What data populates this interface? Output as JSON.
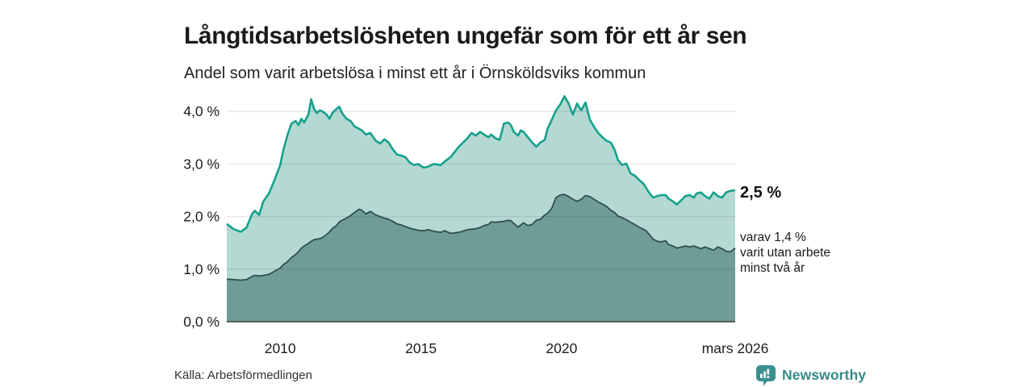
{
  "header": {
    "title": "Långtidsarbetslösheten ungefär som för ett år sen",
    "subtitle": "Andel som varit arbetslösa i minst ett år i Örnsköldsviks kommun"
  },
  "annotations": {
    "total_end_label": "2,5 %",
    "breakdown_lines": [
      "varav 1,4 %",
      "varit utan arbete",
      "minst två år"
    ]
  },
  "footer": {
    "source": "Källa: Arbetsförmedlingen",
    "brand": "Newsworthy"
  },
  "colors": {
    "total_line": "#16a18c",
    "total_fill": "#b4d9d3",
    "two_year_line": "#2f504d",
    "two_year_fill": "#6f9c98",
    "grid_line": "#dcdcdc",
    "grid_over_fill": "rgba(20,20,20,0.10)",
    "axis_line": "#3a3a3a",
    "tick_text": "#1c1c1c",
    "brand_teal": "#35888a"
  },
  "chart_data": {
    "type": "area",
    "title": "Långtidsarbetslösheten ungefär som för ett år sen",
    "subtitle": "Andel som varit arbetslösa i minst ett år i Örnsköldsviks kommun",
    "xlabel": "",
    "ylabel": "",
    "unit": "%",
    "grid": true,
    "legend_position": "end-of-line-labels",
    "x_range": [
      2008.1,
      2026.17
    ],
    "ylim": [
      0,
      4.35
    ],
    "yticks": [
      {
        "value": 0.0,
        "label": "0,0 %"
      },
      {
        "value": 1.0,
        "label": "1,0 %"
      },
      {
        "value": 2.0,
        "label": "2,0 %"
      },
      {
        "value": 3.0,
        "label": "3,0 %"
      },
      {
        "value": 4.0,
        "label": "4,0 %"
      }
    ],
    "xticks": [
      {
        "value": 2010,
        "label": "2010"
      },
      {
        "value": 2015,
        "label": "2015"
      },
      {
        "value": 2020,
        "label": "2020"
      },
      {
        "value": 2026.17,
        "label": "mars 2026"
      }
    ],
    "x": [
      2008.1,
      2008.35,
      2008.6,
      2008.8,
      2009.0,
      2009.1,
      2009.25,
      2009.4,
      2009.6,
      2009.8,
      2010.0,
      2010.1,
      2010.25,
      2010.4,
      2010.55,
      2010.65,
      2010.75,
      2010.85,
      2011.0,
      2011.1,
      2011.2,
      2011.3,
      2011.4,
      2011.5,
      2011.65,
      2011.75,
      2011.85,
      2012.0,
      2012.1,
      2012.2,
      2012.35,
      2012.5,
      2012.65,
      2012.8,
      2012.9,
      2013.05,
      2013.2,
      2013.4,
      2013.55,
      2013.7,
      2013.85,
      2014.0,
      2014.15,
      2014.3,
      2014.45,
      2014.6,
      2014.75,
      2014.9,
      2015.1,
      2015.25,
      2015.45,
      2015.7,
      2015.85,
      2016.05,
      2016.35,
      2016.65,
      2016.8,
      2016.95,
      2017.1,
      2017.25,
      2017.4,
      2017.5,
      2017.65,
      2017.8,
      2017.95,
      2018.1,
      2018.2,
      2018.3,
      2018.45,
      2018.55,
      2018.65,
      2018.8,
      2018.95,
      2019.1,
      2019.25,
      2019.4,
      2019.5,
      2019.65,
      2019.8,
      2019.95,
      2020.1,
      2020.25,
      2020.4,
      2020.55,
      2020.7,
      2020.85,
      2021.0,
      2021.15,
      2021.3,
      2021.45,
      2021.6,
      2021.75,
      2021.9,
      2022.0,
      2022.15,
      2022.3,
      2022.45,
      2022.6,
      2022.75,
      2022.9,
      2023.0,
      2023.1,
      2023.25,
      2023.4,
      2023.55,
      2023.7,
      2023.8,
      2023.95,
      2024.1,
      2024.25,
      2024.4,
      2024.55,
      2024.7,
      2024.8,
      2024.95,
      2025.1,
      2025.25,
      2025.4,
      2025.55,
      2025.7,
      2025.85,
      2026.0,
      2026.17
    ],
    "series": [
      {
        "name": "Andel arbetslösa minst ett år",
        "end_value": 2.5,
        "end_label": "2,5 %",
        "values": [
          1.86,
          1.76,
          1.71,
          1.79,
          2.05,
          2.11,
          2.03,
          2.29,
          2.44,
          2.7,
          2.98,
          3.24,
          3.54,
          3.77,
          3.82,
          3.74,
          3.86,
          3.79,
          3.94,
          4.23,
          4.05,
          3.97,
          4.02,
          4.0,
          3.94,
          3.86,
          3.97,
          4.05,
          4.09,
          3.97,
          3.86,
          3.82,
          3.71,
          3.67,
          3.64,
          3.56,
          3.59,
          3.44,
          3.39,
          3.47,
          3.41,
          3.28,
          3.18,
          3.16,
          3.13,
          3.03,
          2.98,
          3.0,
          2.93,
          2.95,
          3.0,
          2.98,
          3.05,
          3.13,
          3.33,
          3.49,
          3.59,
          3.54,
          3.61,
          3.56,
          3.51,
          3.56,
          3.49,
          3.46,
          3.77,
          3.79,
          3.74,
          3.61,
          3.54,
          3.64,
          3.61,
          3.51,
          3.41,
          3.33,
          3.41,
          3.46,
          3.67,
          3.84,
          4.02,
          4.13,
          4.29,
          4.15,
          3.94,
          4.15,
          4.02,
          4.17,
          3.85,
          3.71,
          3.59,
          3.51,
          3.44,
          3.41,
          3.25,
          3.08,
          2.98,
          3.01,
          2.82,
          2.78,
          2.7,
          2.63,
          2.55,
          2.46,
          2.36,
          2.39,
          2.41,
          2.41,
          2.34,
          2.29,
          2.23,
          2.31,
          2.39,
          2.41,
          2.36,
          2.44,
          2.46,
          2.39,
          2.34,
          2.46,
          2.39,
          2.36,
          2.46,
          2.49,
          2.5
        ]
      },
      {
        "name": "varav utan arbete minst två år",
        "end_value": 1.4,
        "end_label": "varav 1,4 % varit utan arbete minst två år",
        "values": [
          0.81,
          0.8,
          0.79,
          0.8,
          0.86,
          0.88,
          0.87,
          0.88,
          0.9,
          0.96,
          1.02,
          1.08,
          1.14,
          1.22,
          1.28,
          1.33,
          1.4,
          1.44,
          1.49,
          1.53,
          1.56,
          1.57,
          1.58,
          1.6,
          1.66,
          1.71,
          1.77,
          1.83,
          1.9,
          1.93,
          1.97,
          2.02,
          2.08,
          2.14,
          2.12,
          2.05,
          2.1,
          2.03,
          2.0,
          1.97,
          1.95,
          1.91,
          1.86,
          1.84,
          1.81,
          1.78,
          1.76,
          1.74,
          1.73,
          1.75,
          1.72,
          1.7,
          1.73,
          1.68,
          1.7,
          1.75,
          1.76,
          1.77,
          1.79,
          1.83,
          1.85,
          1.9,
          1.89,
          1.9,
          1.91,
          1.93,
          1.92,
          1.87,
          1.8,
          1.84,
          1.88,
          1.83,
          1.85,
          1.93,
          1.95,
          2.03,
          2.06,
          2.16,
          2.36,
          2.41,
          2.42,
          2.38,
          2.33,
          2.29,
          2.33,
          2.4,
          2.38,
          2.33,
          2.28,
          2.24,
          2.19,
          2.12,
          2.07,
          2.01,
          1.98,
          1.94,
          1.89,
          1.85,
          1.8,
          1.76,
          1.73,
          1.67,
          1.57,
          1.53,
          1.52,
          1.54,
          1.47,
          1.44,
          1.4,
          1.42,
          1.44,
          1.42,
          1.44,
          1.42,
          1.39,
          1.42,
          1.39,
          1.36,
          1.42,
          1.39,
          1.34,
          1.33,
          1.4
        ]
      }
    ]
  }
}
